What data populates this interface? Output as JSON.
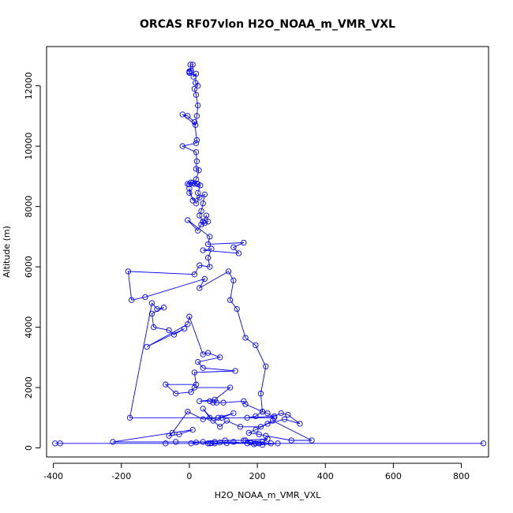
{
  "chart_data": {
    "type": "line",
    "title": "ORCAS RF07vlon H2O_NOAA_m_VMR_VXL",
    "xlabel": "H2O_NOAA_m_VMR_VXL",
    "ylabel": "Altitude (m)",
    "xlim": [
      -420,
      880
    ],
    "ylim": [
      -300,
      13300
    ],
    "x_ticks": [
      -400,
      -200,
      0,
      200,
      400,
      600,
      800
    ],
    "y_ticks": [
      0,
      2000,
      4000,
      6000,
      8000,
      10000,
      12000
    ],
    "grid": false,
    "marker": "open-circle",
    "color": "#0000ff",
    "series": [
      {
        "points": [
          [
            0,
            12480
          ],
          [
            0,
            12430
          ],
          [
            0,
            12460
          ],
          [
            5,
            12500
          ],
          [
            3,
            12700
          ],
          [
            10,
            12700
          ],
          [
            12,
            12300
          ],
          [
            20,
            12400
          ],
          [
            18,
            12100
          ],
          [
            25,
            12000
          ],
          [
            15,
            11900
          ],
          [
            20,
            11700
          ],
          [
            25,
            11350
          ],
          [
            22,
            11000
          ],
          [
            18,
            10700
          ],
          [
            -20,
            11050
          ],
          [
            -5,
            11000
          ],
          [
            15,
            10800
          ],
          [
            22,
            10200
          ],
          [
            20,
            10100
          ],
          [
            -20,
            10000
          ],
          [
            20,
            9800
          ],
          [
            22,
            9500
          ],
          [
            20,
            9250
          ],
          [
            28,
            9200
          ],
          [
            20,
            8900
          ],
          [
            10,
            8780
          ],
          [
            -5,
            8750
          ],
          [
            0,
            8730
          ],
          [
            5,
            8800
          ],
          [
            15,
            8750
          ],
          [
            22,
            8760
          ],
          [
            25,
            8740
          ],
          [
            32,
            8700
          ],
          [
            25,
            8450
          ],
          [
            30,
            8300
          ],
          [
            20,
            8100
          ],
          [
            0,
            8450
          ],
          [
            0,
            8600
          ],
          [
            10,
            8200
          ],
          [
            45,
            8400
          ],
          [
            40,
            8100
          ],
          [
            35,
            7850
          ],
          [
            30,
            7700
          ],
          [
            40,
            7500
          ],
          [
            50,
            7700
          ],
          [
            55,
            7500
          ],
          [
            45,
            7450
          ],
          [
            40,
            7500
          ],
          [
            35,
            7400
          ],
          [
            25,
            7200
          ],
          [
            -5,
            7550
          ],
          [
            60,
            7000
          ],
          [
            55,
            6750
          ],
          [
            160,
            6800
          ],
          [
            130,
            6650
          ],
          [
            145,
            6450
          ],
          [
            40,
            6550
          ],
          [
            65,
            6600
          ],
          [
            55,
            6300
          ],
          [
            60,
            6000
          ],
          [
            30,
            6050
          ],
          [
            15,
            5750
          ],
          [
            -180,
            5850
          ],
          [
            -170,
            4900
          ],
          [
            -130,
            5000
          ],
          [
            45,
            5600
          ],
          [
            30,
            5300
          ],
          [
            115,
            5850
          ],
          [
            130,
            5550
          ],
          [
            120,
            4900
          ],
          [
            140,
            4600
          ],
          [
            165,
            3650
          ],
          [
            195,
            3400
          ],
          [
            225,
            2700
          ],
          [
            210,
            1800
          ],
          [
            215,
            1200
          ],
          [
            230,
            1150
          ],
          [
            250,
            1000
          ],
          [
            -175,
            1000
          ],
          [
            -110,
            4800
          ],
          [
            -95,
            4600
          ],
          [
            -75,
            4650
          ],
          [
            -110,
            4450
          ],
          [
            -105,
            4000
          ],
          [
            -60,
            3900
          ],
          [
            -45,
            3750
          ],
          [
            -15,
            3950
          ],
          [
            -125,
            3350
          ],
          [
            -5,
            4100
          ],
          [
            0,
            4350
          ],
          [
            40,
            3100
          ],
          [
            55,
            3150
          ],
          [
            90,
            3000
          ],
          [
            25,
            2850
          ],
          [
            40,
            2650
          ],
          [
            135,
            2550
          ],
          [
            15,
            2500
          ],
          [
            20,
            2100
          ],
          [
            -70,
            2100
          ],
          [
            -40,
            1800
          ],
          [
            5,
            1850
          ],
          [
            15,
            2000
          ],
          [
            120,
            2000
          ],
          [
            75,
            1600
          ],
          [
            30,
            1550
          ],
          [
            60,
            1550
          ],
          [
            70,
            1500
          ],
          [
            80,
            1500
          ],
          [
            100,
            1500
          ],
          [
            160,
            1550
          ],
          [
            165,
            1450
          ],
          [
            215,
            1200
          ],
          [
            195,
            1050
          ],
          [
            170,
            1000
          ],
          [
            250,
            1050
          ],
          [
            270,
            1150
          ],
          [
            290,
            1100
          ],
          [
            325,
            800
          ],
          [
            280,
            950
          ],
          [
            230,
            800
          ],
          [
            195,
            600
          ],
          [
            175,
            500
          ],
          [
            205,
            450
          ],
          [
            225,
            400
          ],
          [
            300,
            250
          ],
          [
            360,
            250
          ],
          [
            245,
            900
          ],
          [
            210,
            700
          ],
          [
            150,
            700
          ],
          [
            110,
            900
          ],
          [
            90,
            700
          ],
          [
            60,
            1000
          ],
          [
            40,
            1300
          ],
          [
            70,
            900
          ],
          [
            95,
            1000
          ],
          [
            130,
            1150
          ],
          [
            85,
            1000
          ],
          [
            40,
            950
          ],
          [
            -5,
            1200
          ],
          [
            -50,
            500
          ],
          [
            -60,
            400
          ],
          [
            -30,
            450
          ],
          [
            10,
            600
          ],
          [
            -225,
            200
          ],
          [
            -40,
            200
          ],
          [
            75,
            200
          ],
          [
            105,
            250
          ],
          [
            160,
            250
          ],
          [
            230,
            300
          ],
          [
            215,
            200
          ],
          [
            195,
            150
          ],
          [
            170,
            150
          ],
          [
            165,
            250
          ],
          [
            240,
            150
          ],
          [
            205,
            150
          ],
          [
            180,
            180
          ],
          [
            110,
            160
          ],
          [
            90,
            180
          ],
          [
            75,
            150
          ],
          [
            65,
            160
          ],
          [
            55,
            150
          ],
          [
            40,
            200
          ],
          [
            20,
            180
          ],
          [
            5,
            150
          ],
          [
            -70,
            150
          ],
          [
            -380,
            150
          ],
          [
            865,
            150
          ],
          [
            260,
            150
          ],
          [
            215,
            100
          ],
          [
            190,
            120
          ],
          [
            130,
            200
          ],
          [
            60,
            150
          ],
          [
            -395,
            150
          ]
        ]
      }
    ]
  }
}
